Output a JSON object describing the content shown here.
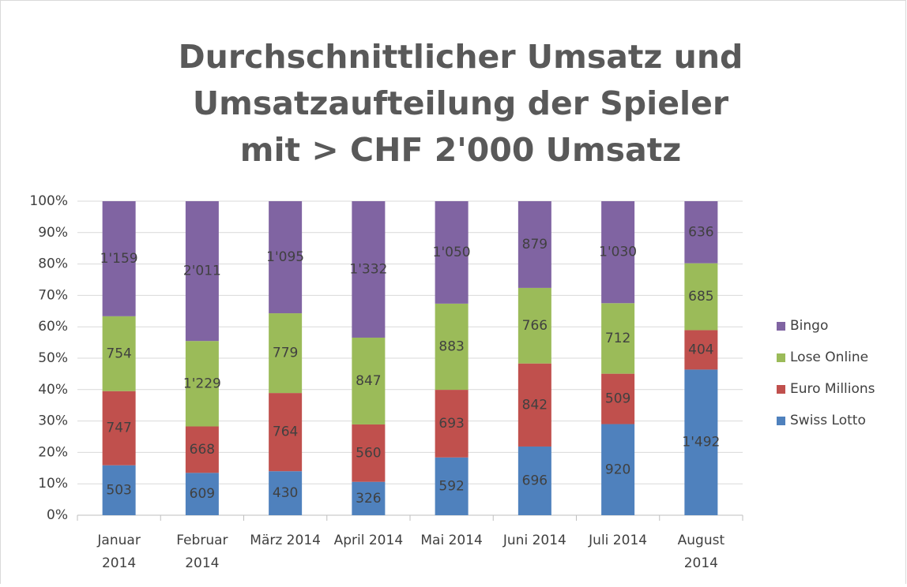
{
  "chart_data": {
    "type": "bar",
    "stacking": "percent",
    "title": "Durchschnittlicher Umsatz und Umsatzaufteilung der Spieler mit > CHF 2'000 Umsatz",
    "categories": [
      "Januar 2014",
      "Februar 2014",
      "März 2014",
      "April 2014",
      "Mai 2014",
      "Juni 2014",
      "Juli 2014",
      "August 2014"
    ],
    "series": [
      {
        "name": "Swiss Lotto",
        "color": "#4f81bd",
        "values": [
          503,
          609,
          430,
          326,
          592,
          696,
          920,
          1492
        ],
        "value_labels": [
          "503",
          "609",
          "430",
          "326",
          "592",
          "696",
          "920",
          "1'492"
        ]
      },
      {
        "name": "Euro Millions",
        "color": "#c0504d",
        "values": [
          747,
          668,
          764,
          560,
          693,
          842,
          509,
          404
        ],
        "value_labels": [
          "747",
          "668",
          "764",
          "560",
          "693",
          "842",
          "509",
          "404"
        ]
      },
      {
        "name": "Lose Online",
        "color": "#9bbb59",
        "values": [
          754,
          1229,
          779,
          847,
          883,
          766,
          712,
          685
        ],
        "value_labels": [
          "754",
          "1'229",
          "779",
          "847",
          "883",
          "766",
          "712",
          "685"
        ]
      },
      {
        "name": "Bingo",
        "color": "#8064a2",
        "values": [
          1159,
          2011,
          1095,
          1332,
          1050,
          879,
          1030,
          636
        ],
        "value_labels": [
          "1'159",
          "2'011",
          "1'095",
          "1'332",
          "1'050",
          "879",
          "1'030",
          "636"
        ]
      }
    ],
    "ylim": [
      0,
      100
    ],
    "yticks": [
      {
        "value": 0,
        "label": "0%"
      },
      {
        "value": 10,
        "label": "10%"
      },
      {
        "value": 20,
        "label": "20%"
      },
      {
        "value": 30,
        "label": "30%"
      },
      {
        "value": 40,
        "label": "40%"
      },
      {
        "value": 50,
        "label": "50%"
      },
      {
        "value": 60,
        "label": "60%"
      },
      {
        "value": 70,
        "label": "70%"
      },
      {
        "value": 80,
        "label": "80%"
      },
      {
        "value": 90,
        "label": "90%"
      },
      {
        "value": 100,
        "label": "100%"
      }
    ],
    "grid": true,
    "legend": "right"
  }
}
